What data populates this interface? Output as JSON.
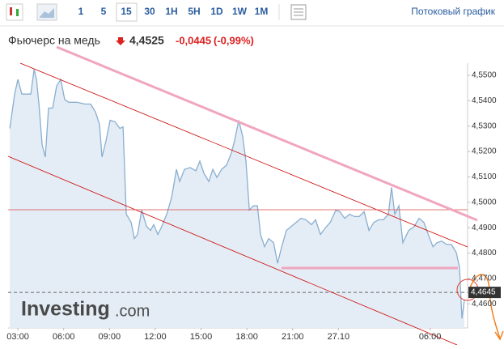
{
  "toolbar": {
    "timeframes": [
      "1",
      "5",
      "15",
      "30",
      "1H",
      "5H",
      "1D",
      "1W",
      "1M"
    ],
    "selected_index": 2,
    "stream_link": "Потоковый график"
  },
  "chart_data": {
    "type": "line",
    "title": "Фьючерс на медь",
    "price": "4,4525",
    "change": "-0,0445",
    "change_percent": "(-0,99%)",
    "watermark": [
      "Investing",
      ".com"
    ],
    "color": "#89aed0",
    "fill": "#e4edf5",
    "last_price": {
      "value": 4.4645,
      "label": "4,4645"
    },
    "xlim": [
      -0.64,
      29.46
    ],
    "xticks": [
      {
        "value": 0,
        "label": "03:00"
      },
      {
        "value": 3,
        "label": "06:00"
      },
      {
        "value": 6,
        "label": "09:00"
      },
      {
        "value": 9,
        "label": "12:00"
      },
      {
        "value": 12,
        "label": "15:00"
      },
      {
        "value": 15,
        "label": "18:00"
      },
      {
        "value": 18,
        "label": "21:00"
      },
      {
        "value": 21,
        "label": "27.10"
      },
      {
        "value": 27,
        "label": "06:00"
      }
    ],
    "ylim": [
      4.4505,
      4.5548
    ],
    "yticks": [
      {
        "value": 4.46,
        "label": "4,4600"
      },
      {
        "value": 4.47,
        "label": "4,4700"
      },
      {
        "value": 4.48,
        "label": "4,4800"
      },
      {
        "value": 4.49,
        "label": "4,4900"
      },
      {
        "value": 4.5,
        "label": "4,5000"
      },
      {
        "value": 4.51,
        "label": "4,5100"
      },
      {
        "value": 4.52,
        "label": "4,5200"
      },
      {
        "value": 4.53,
        "label": "4,5300"
      },
      {
        "value": 4.54,
        "label": "4,5400"
      },
      {
        "value": 4.55,
        "label": "4,5500"
      }
    ],
    "x": [
      -0.53,
      -0.21,
      0,
      0.26,
      0.58,
      0.85,
      1.06,
      1.22,
      1.38,
      1.59,
      1.8,
      2.01,
      2.28,
      2.54,
      2.81,
      3.07,
      3.34,
      3.87,
      4.4,
      4.77,
      5.09,
      5.35,
      5.51,
      5.78,
      6.04,
      6.36,
      6.68,
      6.89,
      7.1,
      7.42,
      7.63,
      7.84,
      8.11,
      8.43,
      8.69,
      8.9,
      9.17,
      9.43,
      9.75,
      10.07,
      10.39,
      10.6,
      10.92,
      11.29,
      11.66,
      11.92,
      12.19,
      12.51,
      12.77,
      13.04,
      13.35,
      13.67,
      13.99,
      14.2,
      14.47,
      14.73,
      14.94,
      15.16,
      15.42,
      15.69,
      15.9,
      16.16,
      16.43,
      16.75,
      17.01,
      17.28,
      17.59,
      17.91,
      18.23,
      18.55,
      18.87,
      19.24,
      19.5,
      19.82,
      20.14,
      20.46,
      20.83,
      21.09,
      21.41,
      21.73,
      22.05,
      22.36,
      22.68,
      23,
      23.32,
      23.64,
      23.95,
      24.27,
      24.48,
      24.69,
      24.96,
      25.22,
      25.6,
      25.97,
      26.28,
      26.6,
      26.92,
      27.19,
      27.45,
      27.77,
      28.09,
      28.4,
      28.72,
      28.93,
      29.09,
      29.25
    ],
    "values": [
      4.5291,
      4.5426,
      4.5484,
      4.5426,
      4.5426,
      4.5426,
      4.5523,
      4.5484,
      4.5387,
      4.5227,
      4.5178,
      4.5371,
      4.5371,
      4.5458,
      4.5484,
      4.5404,
      4.5394,
      4.5394,
      4.5387,
      4.5387,
      4.5355,
      4.5307,
      4.5178,
      4.5243,
      4.5323,
      4.5317,
      4.5291,
      4.5297,
      4.4953,
      4.4921,
      4.4857,
      4.4873,
      4.4969,
      4.4905,
      4.4889,
      4.4912,
      4.4873,
      4.4905,
      4.4953,
      4.5018,
      4.513,
      4.5082,
      4.513,
      4.5137,
      4.5124,
      4.5162,
      4.5114,
      4.5082,
      4.513,
      4.5098,
      4.513,
      4.5146,
      4.5195,
      4.5243,
      4.5323,
      4.5259,
      4.5162,
      4.4969,
      4.4986,
      4.4986,
      4.4873,
      4.4825,
      4.4857,
      4.4841,
      4.476,
      4.4825,
      4.4889,
      4.4905,
      4.4921,
      4.4937,
      4.4931,
      4.4912,
      4.4931,
      4.4873,
      4.4899,
      4.4921,
      4.4969,
      4.4963,
      4.4937,
      4.4953,
      4.4944,
      4.4944,
      4.4963,
      4.4889,
      4.4921,
      4.4931,
      4.4931,
      4.4953,
      4.5059,
      4.4953,
      4.4986,
      4.4841,
      4.4889,
      4.4905,
      4.4937,
      4.4921,
      4.4867,
      4.4825,
      4.4841,
      4.4847,
      4.4834,
      4.4834,
      4.4802,
      4.4744,
      4.4542,
      4.4616
    ]
  }
}
